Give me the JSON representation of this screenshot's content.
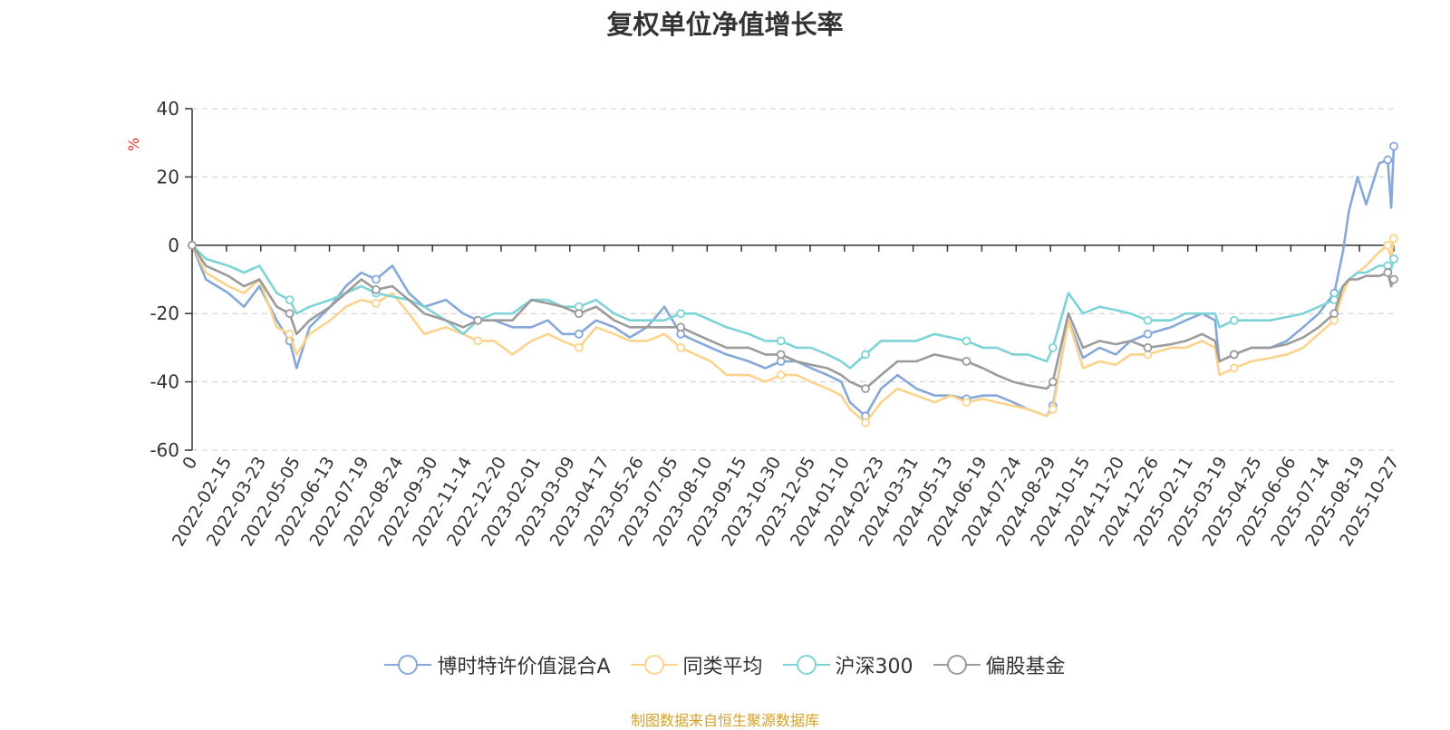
{
  "chart_data": {
    "type": "line",
    "title": "复权单位净值增长率",
    "ylabel": "%",
    "ylim": [
      -60,
      40
    ],
    "yticks": [
      40,
      20,
      0,
      -20,
      -40,
      -60
    ],
    "x_tick_labels": [
      "0",
      "2022-02-15",
      "2022-03-23",
      "2022-05-05",
      "2022-06-13",
      "2022-07-19",
      "2022-08-24",
      "2022-09-30",
      "2022-11-14",
      "2022-12-20",
      "2023-02-01",
      "2023-03-09",
      "2023-04-17",
      "2023-05-26",
      "2023-07-05",
      "2023-08-10",
      "2023-09-15",
      "2023-10-30",
      "2023-12-05",
      "2024-01-10",
      "2024-02-23",
      "2024-03-31",
      "2024-05-13",
      "2024-06-19",
      "2024-07-24",
      "2024-08-29",
      "2024-10-15",
      "2024-11-20",
      "2024-12-26",
      "2025-02-11",
      "2025-03-19",
      "2025-04-25",
      "2025-06-06",
      "2025-07-14",
      "2025-08-19",
      "2025-10-27"
    ],
    "grid": true,
    "legend_position": "bottom",
    "x": [
      "2022-01-04",
      "2022-01-20",
      "2022-02-15",
      "2022-03-05",
      "2022-03-23",
      "2022-04-12",
      "2022-04-27",
      "2022-05-05",
      "2022-05-20",
      "2022-06-13",
      "2022-07-01",
      "2022-07-19",
      "2022-08-05",
      "2022-08-24",
      "2022-09-12",
      "2022-09-30",
      "2022-10-25",
      "2022-11-14",
      "2022-12-01",
      "2022-12-20",
      "2023-01-10",
      "2023-02-01",
      "2023-02-20",
      "2023-03-09",
      "2023-03-28",
      "2023-04-17",
      "2023-05-08",
      "2023-05-26",
      "2023-06-15",
      "2023-07-05",
      "2023-07-24",
      "2023-08-10",
      "2023-08-28",
      "2023-09-15",
      "2023-10-11",
      "2023-10-30",
      "2023-11-17",
      "2023-12-05",
      "2023-12-22",
      "2024-01-10",
      "2024-01-26",
      "2024-02-05",
      "2024-02-23",
      "2024-03-12",
      "2024-03-31",
      "2024-04-22",
      "2024-05-13",
      "2024-06-01",
      "2024-06-19",
      "2024-07-08",
      "2024-07-24",
      "2024-08-12",
      "2024-08-29",
      "2024-09-20",
      "2024-09-27",
      "2024-10-15",
      "2024-11-01",
      "2024-11-20",
      "2024-12-09",
      "2024-12-26",
      "2025-01-15",
      "2025-02-11",
      "2025-02-28",
      "2025-03-19",
      "2025-04-03",
      "2025-04-08",
      "2025-04-25",
      "2025-05-15",
      "2025-06-06",
      "2025-06-25",
      "2025-07-14",
      "2025-08-01",
      "2025-08-19",
      "2025-08-29",
      "2025-09-05",
      "2025-09-15",
      "2025-09-25",
      "2025-10-10",
      "2025-10-20",
      "2025-10-24",
      "2025-10-27"
    ],
    "series": [
      {
        "name": "博时特许价值混合A",
        "color": "#86a8d8",
        "values": [
          0,
          -10,
          -14,
          -18,
          -12,
          -22,
          -28,
          -36,
          -24,
          -18,
          -12,
          -8,
          -10,
          -6,
          -14,
          -18,
          -16,
          -20,
          -22,
          -22,
          -24,
          -24,
          -22,
          -26,
          -26,
          -22,
          -24,
          -27,
          -24,
          -18,
          -26,
          -28,
          -30,
          -32,
          -34,
          -36,
          -34,
          -34,
          -36,
          -38,
          -40,
          -46,
          -50,
          -42,
          -38,
          -42,
          -44,
          -44,
          -45,
          -44,
          -44,
          -46,
          -48,
          -50,
          -47,
          -22,
          -33,
          -30,
          -32,
          -28,
          -26,
          -24,
          -22,
          -20,
          -22,
          -34,
          -32,
          -30,
          -30,
          -28,
          -24,
          -20,
          -14,
          -2,
          10,
          20,
          12,
          24,
          25,
          11,
          29
        ]
      },
      {
        "name": "同类平均",
        "color": "#fcd38c",
        "values": [
          0,
          -8,
          -12,
          -14,
          -10,
          -24,
          -26,
          -32,
          -26,
          -22,
          -18,
          -16,
          -17,
          -14,
          -20,
          -26,
          -24,
          -26,
          -28,
          -28,
          -32,
          -28,
          -26,
          -28,
          -30,
          -24,
          -26,
          -28,
          -28,
          -26,
          -30,
          -32,
          -34,
          -38,
          -38,
          -40,
          -38,
          -38,
          -40,
          -42,
          -44,
          -48,
          -52,
          -46,
          -42,
          -44,
          -46,
          -44,
          -46,
          -45,
          -46,
          -47,
          -48,
          -50,
          -48,
          -22,
          -36,
          -34,
          -35,
          -32,
          -32,
          -30,
          -30,
          -28,
          -30,
          -38,
          -36,
          -34,
          -33,
          -32,
          -30,
          -26,
          -22,
          -14,
          -10,
          -8,
          -6,
          -2,
          0,
          -4,
          2
        ]
      },
      {
        "name": "沪深300",
        "color": "#7dd3d6",
        "values": [
          0,
          -4,
          -6,
          -8,
          -6,
          -14,
          -16,
          -20,
          -18,
          -16,
          -14,
          -12,
          -14,
          -15,
          -16,
          -18,
          -22,
          -26,
          -22,
          -20,
          -20,
          -16,
          -16,
          -18,
          -18,
          -16,
          -20,
          -22,
          -22,
          -22,
          -20,
          -20,
          -22,
          -24,
          -26,
          -28,
          -28,
          -30,
          -30,
          -32,
          -34,
          -36,
          -32,
          -28,
          -28,
          -28,
          -26,
          -27,
          -28,
          -30,
          -30,
          -32,
          -32,
          -34,
          -30,
          -14,
          -20,
          -18,
          -19,
          -20,
          -22,
          -22,
          -20,
          -20,
          -20,
          -24,
          -22,
          -22,
          -22,
          -21,
          -20,
          -18,
          -16,
          -12,
          -10,
          -8,
          -8,
          -6,
          -6,
          -7,
          -4
        ]
      },
      {
        "name": "偏股基金",
        "color": "#9b9b9b",
        "values": [
          0,
          -6,
          -9,
          -12,
          -10,
          -18,
          -20,
          -26,
          -22,
          -18,
          -14,
          -10,
          -13,
          -12,
          -16,
          -20,
          -22,
          -24,
          -22,
          -22,
          -22,
          -16,
          -17,
          -18,
          -20,
          -18,
          -22,
          -24,
          -24,
          -24,
          -24,
          -26,
          -28,
          -30,
          -30,
          -32,
          -32,
          -34,
          -35,
          -36,
          -38,
          -40,
          -42,
          -38,
          -34,
          -34,
          -32,
          -33,
          -34,
          -36,
          -38,
          -40,
          -41,
          -42,
          -40,
          -20,
          -30,
          -28,
          -29,
          -28,
          -30,
          -29,
          -28,
          -26,
          -28,
          -34,
          -32,
          -30,
          -30,
          -29,
          -27,
          -24,
          -20,
          -12,
          -10,
          -10,
          -9,
          -9,
          -8,
          -12,
          -10
        ]
      }
    ]
  },
  "footer": {
    "source": "制图数据来自恒生聚源数据库"
  }
}
